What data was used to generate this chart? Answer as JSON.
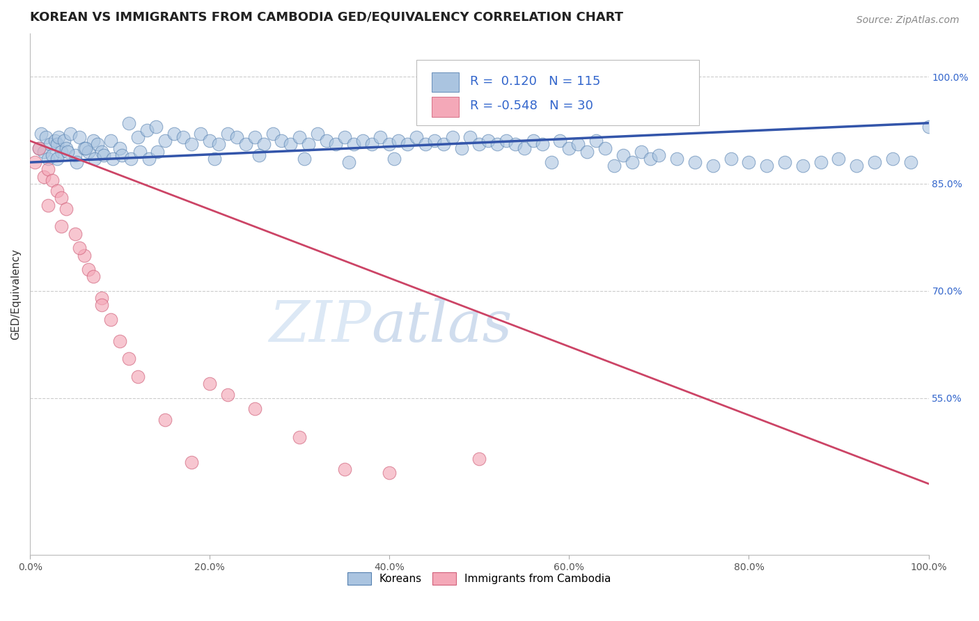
{
  "title": "KOREAN VS IMMIGRANTS FROM CAMBODIA GED/EQUIVALENCY CORRELATION CHART",
  "source": "Source: ZipAtlas.com",
  "ylabel": "GED/Equivalency",
  "xlim": [
    0.0,
    100.0
  ],
  "ylim": [
    33.0,
    106.0
  ],
  "yticks": [
    55.0,
    70.0,
    85.0,
    100.0
  ],
  "xticks": [
    0.0,
    20.0,
    40.0,
    60.0,
    80.0,
    100.0
  ],
  "blue_R": 0.12,
  "blue_N": 115,
  "pink_R": -0.548,
  "pink_N": 30,
  "blue_color": "#aac4e0",
  "pink_color": "#f4a8b8",
  "blue_edge_color": "#5580b0",
  "pink_edge_color": "#d0607a",
  "blue_line_color": "#3355aa",
  "pink_line_color": "#cc4466",
  "watermark_color": "#dce8f5",
  "grid_color": "#cccccc",
  "background_color": "#ffffff",
  "title_color": "#222222",
  "source_color": "#888888",
  "ytick_color": "#3366cc",
  "xtick_color": "#555555",
  "ylabel_color": "#333333",
  "title_fontsize": 13,
  "source_fontsize": 10,
  "tick_fontsize": 10,
  "ylabel_fontsize": 11,
  "legend_fontsize": 11,
  "legend_labels": [
    "Koreans",
    "Immigrants from Cambodia"
  ],
  "blue_trend_x": [
    0.0,
    100.0
  ],
  "blue_trend_y": [
    88.0,
    93.5
  ],
  "pink_trend_x": [
    0.0,
    100.0
  ],
  "pink_trend_y": [
    91.0,
    43.0
  ],
  "blue_scatter_x": [
    1.0,
    1.2,
    1.5,
    1.8,
    2.0,
    2.2,
    2.5,
    2.8,
    3.0,
    3.2,
    3.5,
    3.8,
    4.0,
    4.5,
    5.0,
    5.5,
    6.0,
    6.5,
    7.0,
    7.5,
    8.0,
    9.0,
    10.0,
    11.0,
    12.0,
    13.0,
    14.0,
    15.0,
    16.0,
    17.0,
    18.0,
    19.0,
    20.0,
    21.0,
    22.0,
    23.0,
    24.0,
    25.0,
    26.0,
    27.0,
    28.0,
    29.0,
    30.0,
    31.0,
    32.0,
    33.0,
    34.0,
    35.0,
    36.0,
    37.0,
    38.0,
    39.0,
    40.0,
    41.0,
    42.0,
    43.0,
    44.0,
    45.0,
    46.0,
    47.0,
    48.0,
    49.0,
    50.0,
    51.0,
    52.0,
    53.0,
    54.0,
    55.0,
    56.0,
    57.0,
    58.0,
    59.0,
    60.0,
    61.0,
    62.0,
    63.0,
    64.0,
    65.0,
    66.0,
    67.0,
    68.0,
    69.0,
    70.0,
    72.0,
    74.0,
    76.0,
    78.0,
    80.0,
    82.0,
    84.0,
    86.0,
    88.0,
    90.0,
    92.0,
    94.0,
    96.0,
    98.0,
    100.0,
    3.0,
    4.2,
    5.2,
    6.2,
    7.2,
    8.2,
    9.2,
    10.2,
    11.2,
    12.2,
    13.2,
    14.2,
    20.5,
    25.5,
    30.5,
    35.5,
    40.5
  ],
  "blue_scatter_y": [
    90.0,
    92.0,
    89.5,
    91.5,
    88.5,
    90.5,
    89.0,
    91.0,
    90.5,
    91.5,
    89.5,
    91.0,
    90.0,
    92.0,
    89.0,
    91.5,
    90.0,
    89.5,
    91.0,
    90.5,
    89.5,
    91.0,
    90.0,
    93.5,
    91.5,
    92.5,
    93.0,
    91.0,
    92.0,
    91.5,
    90.5,
    92.0,
    91.0,
    90.5,
    92.0,
    91.5,
    90.5,
    91.5,
    90.5,
    92.0,
    91.0,
    90.5,
    91.5,
    90.5,
    92.0,
    91.0,
    90.5,
    91.5,
    90.5,
    91.0,
    90.5,
    91.5,
    90.5,
    91.0,
    90.5,
    91.5,
    90.5,
    91.0,
    90.5,
    91.5,
    90.0,
    91.5,
    90.5,
    91.0,
    90.5,
    91.0,
    90.5,
    90.0,
    91.0,
    90.5,
    88.0,
    91.0,
    90.0,
    90.5,
    89.5,
    91.0,
    90.0,
    87.5,
    89.0,
    88.0,
    89.5,
    88.5,
    89.0,
    88.5,
    88.0,
    87.5,
    88.5,
    88.0,
    87.5,
    88.0,
    87.5,
    88.0,
    88.5,
    87.5,
    88.0,
    88.5,
    88.0,
    93.0,
    88.5,
    89.5,
    88.0,
    90.0,
    88.5,
    89.0,
    88.5,
    89.0,
    88.5,
    89.5,
    88.5,
    89.5,
    88.5,
    89.0,
    88.5,
    88.0,
    88.5
  ],
  "pink_scatter_x": [
    0.5,
    1.0,
    1.5,
    2.0,
    2.5,
    3.0,
    3.5,
    4.0,
    5.0,
    6.0,
    6.5,
    7.0,
    8.0,
    9.0,
    10.0,
    11.0,
    12.0,
    15.0,
    18.0,
    20.0,
    22.0,
    25.0,
    30.0,
    35.0,
    40.0,
    50.0,
    2.0,
    3.5,
    5.5,
    8.0
  ],
  "pink_scatter_y": [
    88.0,
    90.0,
    86.0,
    87.0,
    85.5,
    84.0,
    83.0,
    81.5,
    78.0,
    75.0,
    73.0,
    72.0,
    69.0,
    66.0,
    63.0,
    60.5,
    58.0,
    52.0,
    46.0,
    57.0,
    55.5,
    53.5,
    49.5,
    45.0,
    44.5,
    46.5,
    82.0,
    79.0,
    76.0,
    68.0
  ]
}
